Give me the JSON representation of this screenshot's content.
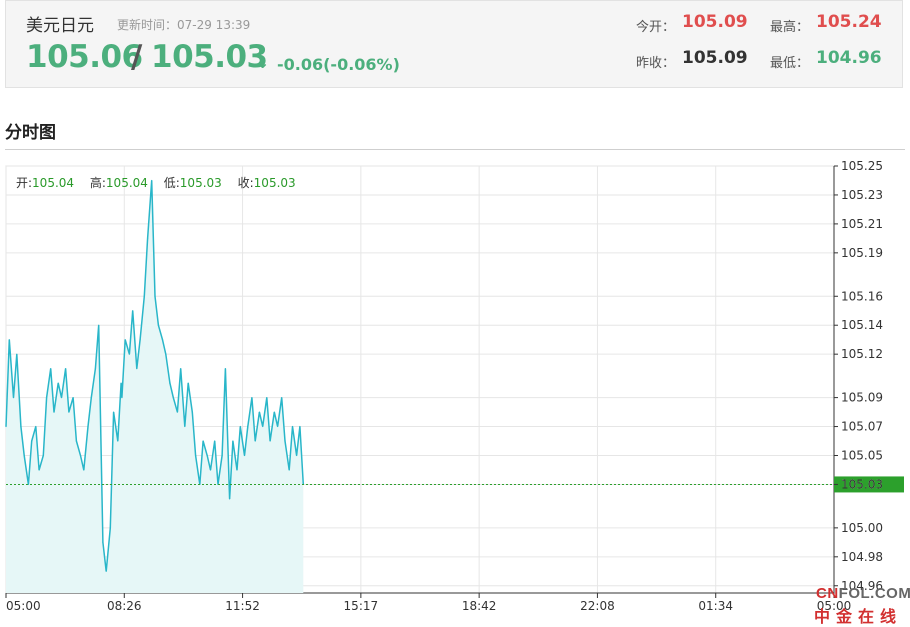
{
  "header": {
    "pair_name": "美元日元",
    "updated_label": "更新时间：07-29 13:39",
    "bid": "105.06",
    "slash": "/",
    "ask": "105.03",
    "arrow": "↓",
    "change": "-0.06(-0.06%)",
    "stats": {
      "open_label": "今开：",
      "open": "105.09",
      "high_label": "最高：",
      "high": "105.24",
      "prev_close_label": "昨收：",
      "prev_close": "105.09",
      "low_label": "最低：",
      "low": "104.96"
    }
  },
  "section_title": "分时图",
  "ohlc": {
    "open_label": "开:",
    "open": "105.04",
    "high_label": "高:",
    "high": "105.04",
    "low_label": "低:",
    "low": "105.03",
    "close_label": "收:",
    "close": "105.03"
  },
  "watermark": {
    "top_c": "CN",
    "top_rest": "FOL.COM",
    "bottom": "中金在线"
  },
  "colors": {
    "line": "#29b6c9",
    "area": "#e6f7f7",
    "current": "#2ca02c",
    "grid": "#e6e6e6",
    "up": "#e04e4e",
    "down": "#4caf7d"
  },
  "chart_data": {
    "type": "area",
    "x_ticks": [
      "05:00",
      "08:26",
      "11:52",
      "15:17",
      "18:42",
      "22:08",
      "01:34",
      "05:00"
    ],
    "y_ticks": [
      105.25,
      105.23,
      105.21,
      105.19,
      105.16,
      105.14,
      105.12,
      105.09,
      105.07,
      105.05,
      105.03,
      105.0,
      104.98,
      104.96
    ],
    "y_range": [
      104.955,
      105.25
    ],
    "current_value": 105.03,
    "current_label": "105.03",
    "grid": true,
    "points_x_fraction_of_day": [
      0.0,
      0.004,
      0.009,
      0.013,
      0.018,
      0.022,
      0.027,
      0.031,
      0.036,
      0.04,
      0.045,
      0.049,
      0.054,
      0.058,
      0.063,
      0.067,
      0.072,
      0.076,
      0.081,
      0.085,
      0.09,
      0.094,
      0.099,
      0.103,
      0.108,
      0.112,
      0.117,
      0.121,
      0.126,
      0.13,
      0.135,
      0.139,
      0.14,
      0.144,
      0.149,
      0.153,
      0.158,
      0.162,
      0.167,
      0.171,
      0.176,
      0.18,
      0.184,
      0.189,
      0.193,
      0.198,
      0.202,
      0.207,
      0.211,
      0.216,
      0.22,
      0.225,
      0.229,
      0.234,
      0.238,
      0.243,
      0.247,
      0.252,
      0.256,
      0.261,
      0.265,
      0.27,
      0.274,
      0.279,
      0.283,
      0.288,
      0.292,
      0.297,
      0.301,
      0.306,
      0.31,
      0.315,
      0.319,
      0.324,
      0.328,
      0.333,
      0.337,
      0.342,
      0.346,
      0.351,
      0.355,
      0.359
    ],
    "values": [
      105.07,
      105.13,
      105.09,
      105.12,
      105.07,
      105.05,
      105.03,
      105.06,
      105.07,
      105.04,
      105.05,
      105.09,
      105.11,
      105.08,
      105.1,
      105.09,
      105.11,
      105.08,
      105.09,
      105.06,
      105.05,
      105.04,
      105.07,
      105.09,
      105.11,
      105.14,
      104.99,
      104.97,
      105.0,
      105.08,
      105.06,
      105.1,
      105.09,
      105.13,
      105.12,
      105.15,
      105.11,
      105.13,
      105.16,
      105.2,
      105.24,
      105.16,
      105.14,
      105.13,
      105.12,
      105.1,
      105.09,
      105.08,
      105.11,
      105.07,
      105.1,
      105.08,
      105.05,
      105.03,
      105.06,
      105.05,
      105.04,
      105.06,
      105.03,
      105.05,
      105.11,
      105.02,
      105.06,
      105.04,
      105.07,
      105.05,
      105.07,
      105.09,
      105.06,
      105.08,
      105.07,
      105.09,
      105.06,
      105.08,
      105.07,
      105.09,
      105.06,
      105.04,
      105.07,
      105.05,
      105.07,
      105.03
    ]
  }
}
